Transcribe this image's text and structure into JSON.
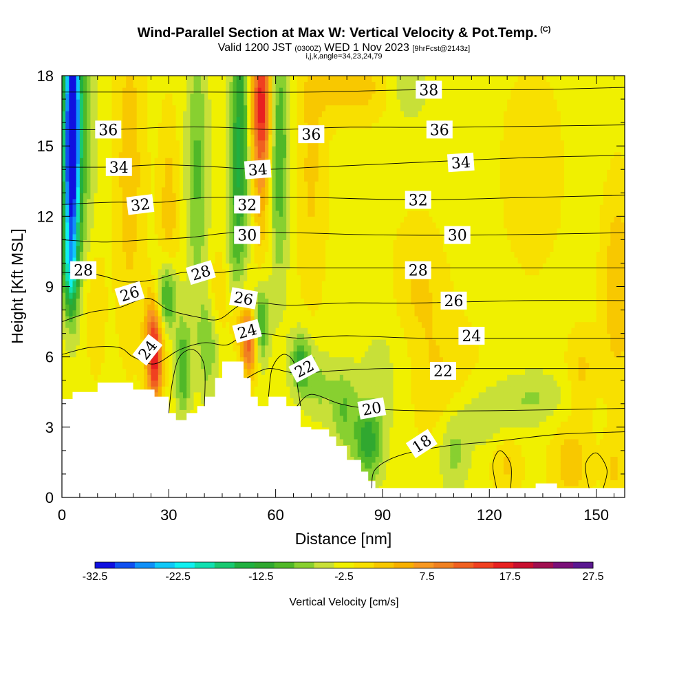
{
  "header": {
    "title": "Wind-Parallel Section at Max W: Vertical Velocity & Pot.Temp.",
    "title_tag": "(C)",
    "valid_main": "Valid 1200 JST",
    "valid_zulu": "(0300Z)",
    "valid_date": "WED 1 Nov 2023",
    "forecast": "[9hrFcst@2143z]",
    "params": "i,j,k,angle=34,23,24,79"
  },
  "chart_data": {
    "type": "heatmap",
    "title": "Wind-Parallel Section at Max W: Vertical Velocity & Pot.Temp.",
    "xlabel": "Distance [nm]",
    "ylabel": "Height [Kft MSL]",
    "xlim": [
      0,
      158
    ],
    "ylim": [
      0,
      18
    ],
    "x_ticks": [
      "0",
      "30",
      "60",
      "90",
      "120",
      "150"
    ],
    "x_tick_values": [
      0,
      30,
      60,
      90,
      120,
      150
    ],
    "y_ticks": [
      "0",
      "3",
      "6",
      "9",
      "12",
      "15",
      "18"
    ],
    "y_tick_values": [
      0,
      3,
      6,
      9,
      12,
      15,
      18
    ],
    "x_minor_step": 5,
    "y_minor_step": 1,
    "colorbar": {
      "title": "Vertical Velocity [cm/s]",
      "labels": [
        "-32.5",
        "-22.5",
        "-12.5",
        "-2.5",
        "7.5",
        "17.5",
        "27.5"
      ],
      "label_values": [
        -32.5,
        -22.5,
        -12.5,
        -2.5,
        7.5,
        17.5,
        27.5
      ],
      "min": -32.5,
      "max": 27.5,
      "step": 2.5,
      "colors": [
        "#1010e0",
        "#1050f0",
        "#1090f8",
        "#10c8f8",
        "#10f0f0",
        "#10e0b0",
        "#18c870",
        "#20b040",
        "#30a830",
        "#50b828",
        "#88d030",
        "#c8e038",
        "#f0f000",
        "#f8e000",
        "#f8c800",
        "#f8b000",
        "#f89820",
        "#f08020",
        "#f06020",
        "#f04020",
        "#e82020",
        "#c81030",
        "#a01050",
        "#7a1078",
        "#5a1890"
      ]
    },
    "background_level": -1.0,
    "terrain": [
      [
        0,
        4.2
      ],
      [
        3,
        4.2
      ],
      [
        3,
        4.5
      ],
      [
        10,
        4.5
      ],
      [
        10,
        4.9
      ],
      [
        20,
        4.9
      ],
      [
        20,
        4.6
      ],
      [
        26,
        4.6
      ],
      [
        26,
        4.3
      ],
      [
        30,
        4.3
      ],
      [
        30,
        3.6
      ],
      [
        32,
        3.6
      ],
      [
        32,
        3.3
      ],
      [
        35,
        3.3
      ],
      [
        35,
        3.6
      ],
      [
        38,
        3.6
      ],
      [
        38,
        3.9
      ],
      [
        40,
        3.9
      ],
      [
        40,
        4.3
      ],
      [
        43,
        4.3
      ],
      [
        43,
        5.1
      ],
      [
        45,
        5.1
      ],
      [
        45,
        5.8
      ],
      [
        51,
        5.8
      ],
      [
        51,
        5.1
      ],
      [
        53,
        5.1
      ],
      [
        53,
        4.3
      ],
      [
        55,
        4.3
      ],
      [
        55,
        3.9
      ],
      [
        58,
        3.9
      ],
      [
        58,
        4.3
      ],
      [
        63,
        4.3
      ],
      [
        63,
        3.9
      ],
      [
        67,
        3.9
      ],
      [
        67,
        3.0
      ],
      [
        70,
        3.0
      ],
      [
        70,
        2.9
      ],
      [
        75,
        2.9
      ],
      [
        75,
        2.6
      ],
      [
        77,
        2.6
      ],
      [
        77,
        2.2
      ],
      [
        80,
        2.2
      ],
      [
        80,
        1.6
      ],
      [
        84,
        1.6
      ],
      [
        84,
        1.1
      ],
      [
        86,
        1.1
      ],
      [
        86,
        0.7
      ],
      [
        88,
        0.7
      ],
      [
        88,
        0.4
      ],
      [
        133,
        0.4
      ],
      [
        133,
        0.6
      ],
      [
        139,
        0.6
      ],
      [
        139,
        0.4
      ],
      [
        158,
        0.4
      ]
    ],
    "w_features": [
      {
        "x": 3,
        "y": 16.5,
        "sx": 1.8,
        "sy": 3.5,
        "w": -28
      },
      {
        "x": 2.5,
        "y": 13,
        "sx": 1.5,
        "sy": 3,
        "w": -16
      },
      {
        "x": 2.5,
        "y": 9.6,
        "sx": 1.5,
        "sy": 1.3,
        "w": -10
      },
      {
        "x": 7,
        "y": 15,
        "sx": 2,
        "sy": 5,
        "w": -4
      },
      {
        "x": 19,
        "y": 14,
        "sx": 3,
        "sy": 5,
        "w": 5
      },
      {
        "x": 9,
        "y": 8,
        "sx": 2,
        "sy": 2,
        "w": 4
      },
      {
        "x": 26,
        "y": 5.7,
        "sx": 1.5,
        "sy": 1.3,
        "w": 17
      },
      {
        "x": 25.5,
        "y": 7.3,
        "sx": 1.8,
        "sy": 1.2,
        "w": 8
      },
      {
        "x": 29.5,
        "y": 8.6,
        "sx": 2,
        "sy": 1.1,
        "w": -12
      },
      {
        "x": 34,
        "y": 5.5,
        "sx": 1.5,
        "sy": 1.5,
        "w": -9
      },
      {
        "x": 30,
        "y": 12,
        "sx": 2,
        "sy": 3,
        "w": 5
      },
      {
        "x": 38,
        "y": 14,
        "sx": 2.2,
        "sy": 4,
        "w": -7
      },
      {
        "x": 41,
        "y": 6.5,
        "sx": 2,
        "sy": 1.5,
        "w": -6
      },
      {
        "x": 44,
        "y": 8.8,
        "sx": 2,
        "sy": 1.2,
        "w": 4
      },
      {
        "x": 50,
        "y": 16,
        "sx": 1.8,
        "sy": 3.5,
        "w": -11
      },
      {
        "x": 49,
        "y": 11,
        "sx": 2,
        "sy": 3,
        "w": -5
      },
      {
        "x": 56,
        "y": 17,
        "sx": 2,
        "sy": 2,
        "w": 16
      },
      {
        "x": 56,
        "y": 14,
        "sx": 1.7,
        "sy": 3,
        "w": 7
      },
      {
        "x": 52.5,
        "y": 6.5,
        "sx": 1.5,
        "sy": 1,
        "w": 14
      },
      {
        "x": 50,
        "y": 7.5,
        "sx": 2,
        "sy": 1,
        "w": 6
      },
      {
        "x": 61,
        "y": 15,
        "sx": 2,
        "sy": 4,
        "w": -9
      },
      {
        "x": 56,
        "y": 7.5,
        "sx": 1.5,
        "sy": 1.2,
        "w": -10
      },
      {
        "x": 67,
        "y": 5.8,
        "sx": 2,
        "sy": 0.9,
        "w": -10
      },
      {
        "x": 70,
        "y": 14,
        "sx": 3,
        "sy": 4,
        "w": 4
      },
      {
        "x": 72,
        "y": 4.8,
        "sx": 3,
        "sy": 1,
        "w": -5
      },
      {
        "x": 79,
        "y": 3.8,
        "sx": 2.5,
        "sy": 1.2,
        "w": -6
      },
      {
        "x": 82,
        "y": 17.5,
        "sx": 8,
        "sy": 1,
        "w": 5
      },
      {
        "x": 86,
        "y": 2.4,
        "sx": 3,
        "sy": 1.2,
        "w": -10
      },
      {
        "x": 93,
        "y": 5.5,
        "sx": 7,
        "sy": 2,
        "w": -3
      },
      {
        "x": 97,
        "y": 17.5,
        "sx": 4,
        "sy": 1,
        "w": -4
      },
      {
        "x": 100,
        "y": 9,
        "sx": 5,
        "sy": 2,
        "w": 4
      },
      {
        "x": 105,
        "y": 5,
        "sx": 8,
        "sy": 2,
        "w": 4
      },
      {
        "x": 110,
        "y": 1.8,
        "sx": 3,
        "sy": 1.2,
        "w": -5
      },
      {
        "x": 118,
        "y": 3.5,
        "sx": 7,
        "sy": 1,
        "w": -4
      },
      {
        "x": 125,
        "y": 1.5,
        "sx": 3,
        "sy": 1,
        "w": 4
      },
      {
        "x": 133,
        "y": 4.3,
        "sx": 6,
        "sy": 0.8,
        "w": -4
      },
      {
        "x": 132,
        "y": 14,
        "sx": 6,
        "sy": 3,
        "w": 3
      },
      {
        "x": 143,
        "y": 1.5,
        "sx": 4,
        "sy": 1.2,
        "w": 5
      },
      {
        "x": 146,
        "y": 5.5,
        "sx": 3,
        "sy": 1.2,
        "w": 4
      },
      {
        "x": 156,
        "y": 9,
        "sx": 3,
        "sy": 3,
        "w": 6
      },
      {
        "x": 155,
        "y": 1.2,
        "sx": 2,
        "sy": 1,
        "w": 4
      }
    ],
    "isentropes": [
      {
        "label": "18",
        "points": [
          [
            87,
            0.4
          ],
          [
            88,
            1.2
          ],
          [
            95,
            1.8
          ],
          [
            108,
            2.2
          ],
          [
            122,
            2.4
          ],
          [
            140,
            2.7
          ],
          [
            158,
            2.8
          ]
        ]
      },
      {
        "label": "20",
        "points": [
          [
            66,
            3.9
          ],
          [
            70,
            4.4
          ],
          [
            78,
            4.0
          ],
          [
            86,
            3.8
          ],
          [
            100,
            3.7
          ],
          [
            120,
            3.7
          ],
          [
            158,
            3.8
          ]
        ]
      },
      {
        "label": "22",
        "points": [
          [
            52,
            5.1
          ],
          [
            58,
            5.5
          ],
          [
            66,
            5.3
          ],
          [
            76,
            5.4
          ],
          [
            90,
            5.5
          ],
          [
            110,
            5.5
          ],
          [
            130,
            5.5
          ],
          [
            158,
            5.5
          ]
        ]
      },
      {
        "label": "24",
        "points": [
          [
            0,
            6.1
          ],
          [
            8,
            6.4
          ],
          [
            16,
            6.4
          ],
          [
            20,
            6.0
          ],
          [
            26,
            5.7
          ],
          [
            33,
            6.3
          ],
          [
            40,
            6.6
          ],
          [
            46,
            6.5
          ],
          [
            50,
            6.8
          ],
          [
            56,
            7.0
          ],
          [
            66,
            6.8
          ],
          [
            80,
            6.9
          ],
          [
            100,
            6.8
          ],
          [
            130,
            6.8
          ],
          [
            158,
            6.8
          ]
        ]
      },
      {
        "label": "26",
        "points": [
          [
            0,
            7.5
          ],
          [
            8,
            7.9
          ],
          [
            16,
            8.1
          ],
          [
            24,
            8.5
          ],
          [
            30,
            8.0
          ],
          [
            38,
            7.7
          ],
          [
            44,
            7.6
          ],
          [
            50,
            8.2
          ],
          [
            56,
            8.3
          ],
          [
            64,
            8.2
          ],
          [
            80,
            8.3
          ],
          [
            100,
            8.3
          ],
          [
            130,
            8.4
          ],
          [
            158,
            8.4
          ]
        ]
      },
      {
        "label": "28",
        "points": [
          [
            0,
            9.6
          ],
          [
            10,
            9.5
          ],
          [
            18,
            9.2
          ],
          [
            26,
            9.3
          ],
          [
            34,
            9.6
          ],
          [
            44,
            9.6
          ],
          [
            56,
            9.8
          ],
          [
            70,
            9.8
          ],
          [
            100,
            9.8
          ],
          [
            130,
            9.8
          ],
          [
            158,
            9.8
          ]
        ]
      },
      {
        "label": "30",
        "points": [
          [
            0,
            11.0
          ],
          [
            12,
            10.9
          ],
          [
            24,
            11.0
          ],
          [
            36,
            11.1
          ],
          [
            48,
            11.3
          ],
          [
            64,
            11.3
          ],
          [
            90,
            11.2
          ],
          [
            120,
            11.2
          ],
          [
            158,
            11.3
          ]
        ]
      },
      {
        "label": "32",
        "points": [
          [
            0,
            12.5
          ],
          [
            14,
            12.6
          ],
          [
            28,
            12.6
          ],
          [
            40,
            12.8
          ],
          [
            52,
            12.8
          ],
          [
            70,
            12.8
          ],
          [
            100,
            12.7
          ],
          [
            130,
            12.8
          ],
          [
            158,
            12.9
          ]
        ]
      },
      {
        "label": "34",
        "points": [
          [
            0,
            14.1
          ],
          [
            14,
            14.1
          ],
          [
            28,
            14.2
          ],
          [
            44,
            14.1
          ],
          [
            56,
            14.0
          ],
          [
            72,
            14.1
          ],
          [
            100,
            14.3
          ],
          [
            130,
            14.5
          ],
          [
            158,
            14.6
          ]
        ]
      },
      {
        "label": "36",
        "points": [
          [
            0,
            15.7
          ],
          [
            14,
            15.7
          ],
          [
            30,
            15.8
          ],
          [
            44,
            15.8
          ],
          [
            60,
            15.7
          ],
          [
            80,
            15.8
          ],
          [
            110,
            15.8
          ],
          [
            158,
            15.9
          ]
        ]
      },
      {
        "label": "38",
        "points": [
          [
            0,
            17.3
          ],
          [
            20,
            17.3
          ],
          [
            40,
            17.3
          ],
          [
            70,
            17.3
          ],
          [
            100,
            17.4
          ],
          [
            130,
            17.4
          ],
          [
            158,
            17.5
          ]
        ]
      }
    ],
    "extra_contours": [
      [
        [
          30,
          3.6
        ],
        [
          31,
          4.9
        ],
        [
          33,
          6.0
        ],
        [
          37,
          6.3
        ],
        [
          40,
          5.6
        ],
        [
          40,
          3.9
        ]
      ],
      [
        [
          58,
          4.3
        ],
        [
          59,
          5.5
        ],
        [
          62,
          6.1
        ],
        [
          65,
          5.8
        ],
        [
          66,
          4.9
        ],
        [
          67,
          3.9
        ]
      ],
      [
        [
          122,
          0.4
        ],
        [
          121,
          1.4
        ],
        [
          123,
          2.0
        ],
        [
          126,
          1.4
        ],
        [
          126,
          0.4
        ]
      ],
      [
        [
          148,
          0.4
        ],
        [
          147,
          1.4
        ],
        [
          150,
          1.9
        ],
        [
          153,
          1.2
        ],
        [
          152,
          0.4
        ]
      ]
    ],
    "contour_labels": [
      {
        "text": "38",
        "x": 103,
        "y": 17.4,
        "rot": 0
      },
      {
        "text": "36",
        "x": 13,
        "y": 15.7,
        "rot": 0
      },
      {
        "text": "36",
        "x": 70,
        "y": 15.5,
        "rot": 0
      },
      {
        "text": "36",
        "x": 106,
        "y": 15.7,
        "rot": 0
      },
      {
        "text": "34",
        "x": 16,
        "y": 14.1,
        "rot": 0
      },
      {
        "text": "34",
        "x": 55,
        "y": 14.0,
        "rot": -4
      },
      {
        "text": "34",
        "x": 112,
        "y": 14.3,
        "rot": -4
      },
      {
        "text": "32",
        "x": 22,
        "y": 12.5,
        "rot": -7
      },
      {
        "text": "32",
        "x": 52,
        "y": 12.5,
        "rot": 0
      },
      {
        "text": "32",
        "x": 100,
        "y": 12.7,
        "rot": 0
      },
      {
        "text": "30",
        "x": 52,
        "y": 11.2,
        "rot": 0
      },
      {
        "text": "30",
        "x": 111,
        "y": 11.2,
        "rot": 0
      },
      {
        "text": "28",
        "x": 6,
        "y": 9.7,
        "rot": 0
      },
      {
        "text": "28",
        "x": 39,
        "y": 9.6,
        "rot": -17
      },
      {
        "text": "28",
        "x": 100,
        "y": 9.7,
        "rot": 0
      },
      {
        "text": "26",
        "x": 19,
        "y": 8.7,
        "rot": -17
      },
      {
        "text": "26",
        "x": 51,
        "y": 8.5,
        "rot": 10
      },
      {
        "text": "26",
        "x": 110,
        "y": 8.4,
        "rot": 0
      },
      {
        "text": "24",
        "x": 24,
        "y": 6.3,
        "rot": -52
      },
      {
        "text": "24",
        "x": 52,
        "y": 7.1,
        "rot": -15
      },
      {
        "text": "24",
        "x": 115,
        "y": 6.9,
        "rot": 0
      },
      {
        "text": "22",
        "x": 68,
        "y": 5.5,
        "rot": -28
      },
      {
        "text": "22",
        "x": 107,
        "y": 5.4,
        "rot": 0
      },
      {
        "text": "20",
        "x": 87,
        "y": 3.8,
        "rot": -10
      },
      {
        "text": "18",
        "x": 101,
        "y": 2.3,
        "rot": -33
      }
    ]
  }
}
